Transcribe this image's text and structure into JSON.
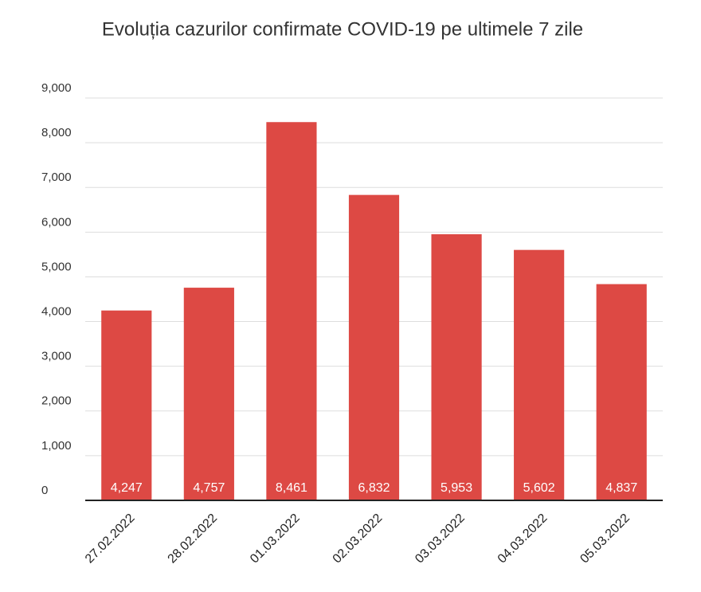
{
  "chart_data": {
    "type": "bar",
    "title": "Evoluția cazurilor confirmate COVID-19 pe ultimele 7 zile",
    "categories": [
      "27.02.2022",
      "28.02.2022",
      "01.03.2022",
      "02.03.2022",
      "03.03.2022",
      "04.03.2022",
      "05.03.2022"
    ],
    "values": [
      4247,
      4757,
      8461,
      6832,
      5953,
      5602,
      4837
    ],
    "value_labels": [
      "4,247",
      "4,757",
      "8,461",
      "6,832",
      "5,953",
      "5,602",
      "4,837"
    ],
    "color": "#dd4944",
    "ylim": [
      0,
      9000
    ],
    "yticks": [
      0,
      {
        "value": 1000,
        "label": "1,000"
      },
      {
        "value": 2000,
        "label": "2,000"
      },
      {
        "value": 3000,
        "label": "3,000"
      },
      {
        "value": 4000,
        "label": "4,000"
      },
      {
        "value": 5000,
        "label": "5,000"
      },
      {
        "value": 6000,
        "label": "6,000"
      },
      {
        "value": 7000,
        "label": "7,000"
      },
      {
        "value": 8000,
        "label": "8,000"
      },
      {
        "value": 9000,
        "label": "9,000"
      }
    ],
    "grid": true
  }
}
